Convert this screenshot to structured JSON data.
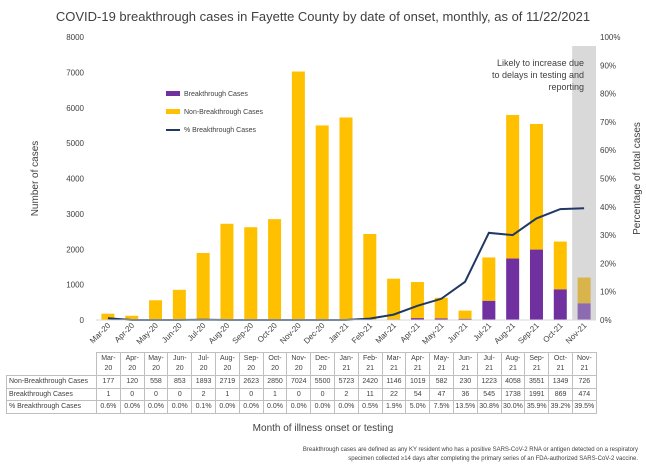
{
  "title": "COVID-19 breakthrough cases in Fayette County by date of onset, monthly, as of 11/22/2021",
  "annotation": [
    "Likely to increase due",
    "to delays in testing and",
    "reporting"
  ],
  "footnote": [
    "Breakthrough cases are defined as any KY resident who has a positive SARS-CoV-2 RNA or antigen detected on a respiratory",
    "specimen collected ≥14 days after completing the primary series of an FDA-authorized SARS-CoV-2 vaccine."
  ],
  "colors": {
    "breakthrough": "#7030a0",
    "non_breakthrough": "#ffc000",
    "pct_line": "#1f3864",
    "shade": "#d9d9d9",
    "partial_non": "#d9b44a",
    "partial_break": "#8c6bb1"
  },
  "chart_data": {
    "type": "bar",
    "stacked": true,
    "title": "COVID-19 breakthrough cases in Fayette County by date of onset, monthly, as of 11/22/2021",
    "xlabel": "Month of illness onset or testing",
    "ylabel": "Number of cases",
    "y2label": "Percentage of total cases",
    "ylim": [
      0,
      8000
    ],
    "yticks": [
      "0",
      "1000",
      "2000",
      "3000",
      "4000",
      "5000",
      "6000",
      "7000",
      "8000"
    ],
    "y2lim": [
      0,
      100
    ],
    "y2ticks": [
      "0%",
      "10%",
      "20%",
      "30%",
      "40%",
      "50%",
      "60%",
      "70%",
      "80%",
      "90%",
      "100%"
    ],
    "legend_position": "upper-left-inside",
    "categories": [
      "Mar-20",
      "Apr-20",
      "May-20",
      "Jun-20",
      "Jul-20",
      "Aug-20",
      "Sep-20",
      "Oct-20",
      "Nov-20",
      "Dec-20",
      "Jan-21",
      "Feb-21",
      "Mar-21",
      "Apr-21",
      "May-21",
      "Jun-21",
      "Jul-21",
      "Aug-21",
      "Sep-21",
      "Oct-21",
      "Nov-21"
    ],
    "table_categories": [
      [
        "Mar-",
        "20"
      ],
      [
        "Apr-",
        "20"
      ],
      [
        "May-",
        "20"
      ],
      [
        "Jun-",
        "20"
      ],
      [
        "Jul-",
        "20"
      ],
      [
        "Aug-",
        "20"
      ],
      [
        "Sep-",
        "20"
      ],
      [
        "Oct-",
        "20"
      ],
      [
        "Nov-",
        "20"
      ],
      [
        "Dec-",
        "20"
      ],
      [
        "Jan-",
        "21"
      ],
      [
        "Feb-",
        "21"
      ],
      [
        "Mar-",
        "21"
      ],
      [
        "Apr-",
        "21"
      ],
      [
        "May-",
        "21"
      ],
      [
        "Jun-",
        "21"
      ],
      [
        "Jul-",
        "21"
      ],
      [
        "Aug-",
        "21"
      ],
      [
        "Sep-",
        "21"
      ],
      [
        "Oct-",
        "21"
      ],
      [
        "Nov-",
        "21"
      ]
    ],
    "series": [
      {
        "name": "Breakthrough Cases",
        "table_label": "Breakthrough Cases",
        "type": "bar",
        "values": [
          1,
          0,
          0,
          0,
          2,
          1,
          0,
          1,
          0,
          0,
          2,
          11,
          22,
          54,
          47,
          36,
          545,
          1738,
          1991,
          869,
          474
        ],
        "display": [
          "1",
          "0",
          "0",
          "0",
          "2",
          "1",
          "0",
          "1",
          "0",
          "0",
          "2",
          "11",
          "22",
          "54",
          "47",
          "36",
          "545",
          "1738",
          "1991",
          "869",
          "474"
        ]
      },
      {
        "name": "Non-Breakthrough Cases",
        "table_label": "Non-Breakthrough Cases",
        "type": "bar",
        "values": [
          177,
          120,
          558,
          853,
          1893,
          2719,
          2623,
          2850,
          7024,
          5500,
          5723,
          2420,
          1146,
          1019,
          582,
          230,
          1223,
          4058,
          3551,
          1349,
          726
        ],
        "display": [
          "177",
          "120",
          "558",
          "853",
          "1893",
          "2719",
          "2623",
          "2850",
          "7024",
          "5500",
          "5723",
          "2420",
          "1146",
          "1019",
          "582",
          "230",
          "1223",
          "4058",
          "3551",
          "1349",
          "726"
        ]
      },
      {
        "name": "% Breakthrough Cases",
        "table_label": "% Breakthrough Cases",
        "type": "line",
        "axis": "secondary",
        "values": [
          0.6,
          0.0,
          0.0,
          0.0,
          0.1,
          0.0,
          0.0,
          0.0,
          0.0,
          0.0,
          0.0,
          0.5,
          1.9,
          5.0,
          7.5,
          13.5,
          30.8,
          30.0,
          35.9,
          39.2,
          39.5
        ],
        "display": [
          "0.6%",
          "0.0%",
          "0.0%",
          "0.0%",
          "0.1%",
          "0.0%",
          "0.0%",
          "0.0%",
          "0.0%",
          "0.0%",
          "0.0%",
          "0.5%",
          "1.9%",
          "5.0%",
          "7.5%",
          "13.5%",
          "30.8%",
          "30.0%",
          "35.9%",
          "39.2%",
          "39.5%"
        ]
      }
    ]
  }
}
